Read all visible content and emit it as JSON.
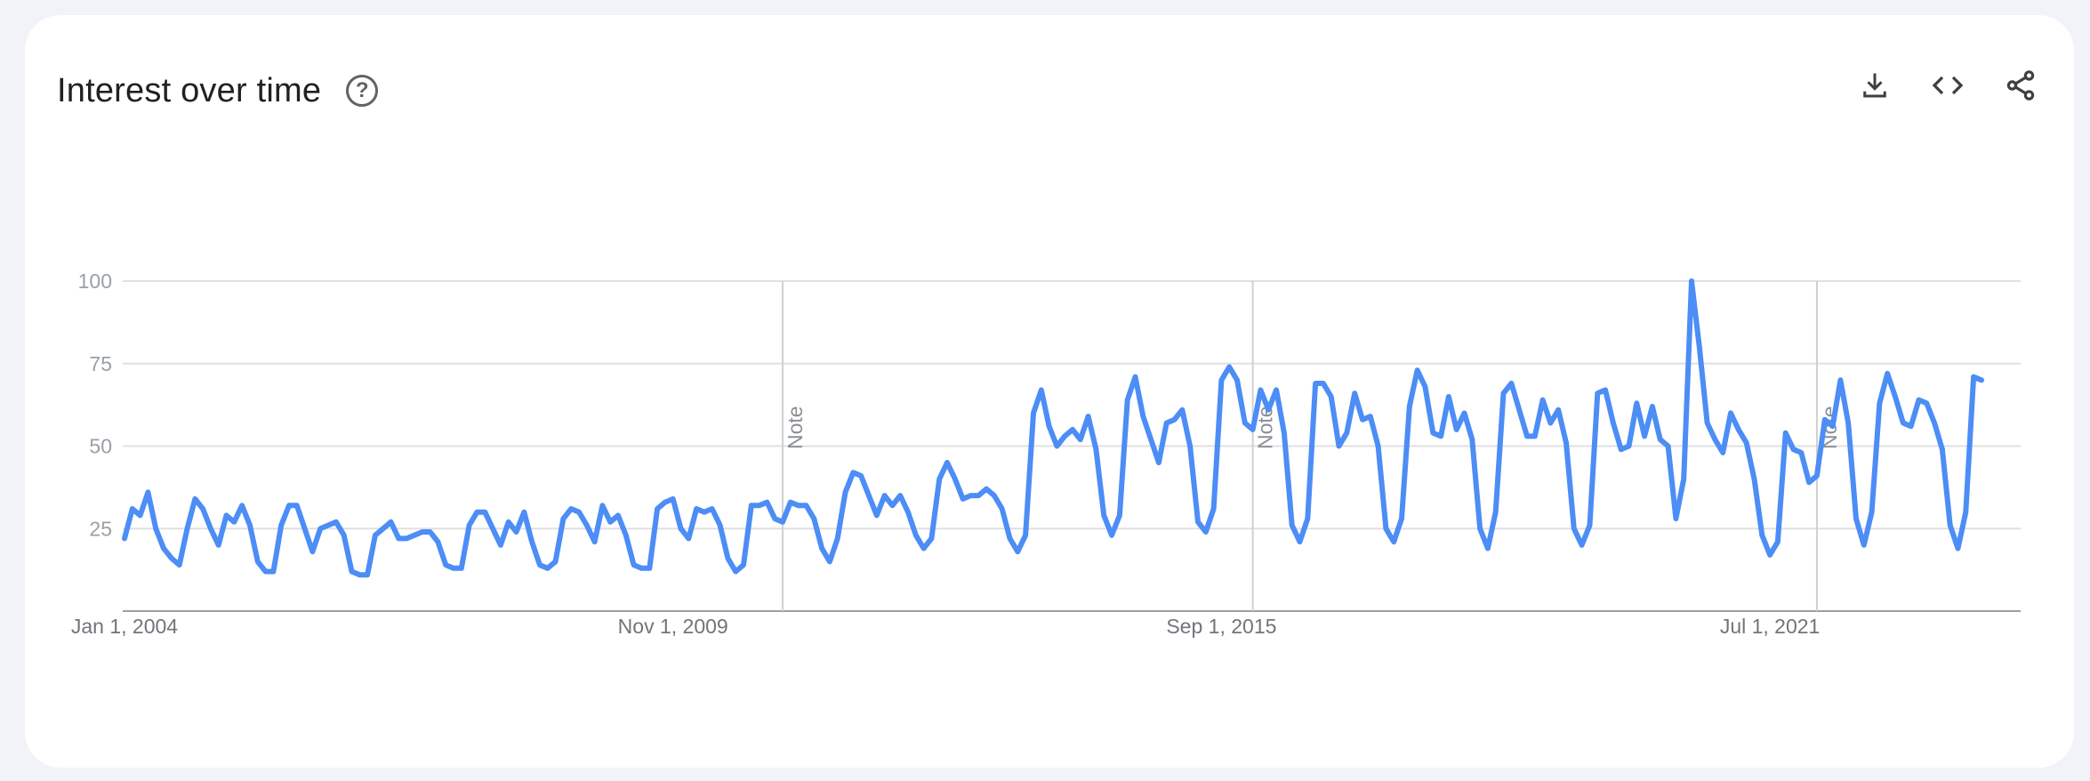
{
  "header": {
    "title": "Interest over time",
    "help_icon": "help-circle-icon"
  },
  "actions": {
    "download_icon": "download-icon",
    "embed_icon": "code-icon",
    "share_icon": "share-icon"
  },
  "colors": {
    "line": "#4c8df6",
    "grid": "#e0e0e0",
    "axis": "#9e9e9e",
    "background": "#f1f3f8"
  },
  "chart_data": {
    "type": "line",
    "title": "",
    "xlabel": "",
    "ylabel": "",
    "ylim": [
      0,
      100
    ],
    "yticks": [
      25,
      50,
      75,
      100
    ],
    "xlim": [
      "2004-01",
      "2024-03"
    ],
    "x_tick_labels": [
      {
        "date": "2004-01",
        "label": "Jan 1, 2004"
      },
      {
        "date": "2009-11",
        "label": "Nov 1, 2009"
      },
      {
        "date": "2015-09",
        "label": "Sep 1, 2015"
      },
      {
        "date": "2021-07",
        "label": "Jul 1, 2021"
      }
    ],
    "notes": [
      {
        "date": "2011-01",
        "label": "Note"
      },
      {
        "date": "2016-01",
        "label": "Note"
      },
      {
        "date": "2022-01",
        "label": "Note"
      }
    ],
    "series": [
      {
        "start": "2004-01",
        "frequency": "monthly",
        "values": [
          22,
          31,
          29,
          36,
          25,
          19,
          16,
          14,
          25,
          34,
          31,
          25,
          20,
          29,
          27,
          32,
          26,
          15,
          12,
          12,
          26,
          32,
          32,
          25,
          18,
          25,
          26,
          27,
          23,
          12,
          11,
          11,
          23,
          25,
          27,
          22,
          22,
          23,
          24,
          24,
          21,
          14,
          13,
          13,
          26,
          30,
          30,
          25,
          20,
          27,
          24,
          30,
          21,
          14,
          13,
          15,
          28,
          31,
          30,
          26,
          21,
          32,
          27,
          29,
          23,
          14,
          13,
          13,
          31,
          33,
          34,
          25,
          22,
          31,
          30,
          31,
          26,
          16,
          12,
          14,
          32,
          32,
          33,
          28,
          27,
          33,
          32,
          32,
          28,
          19,
          15,
          22,
          36,
          42,
          41,
          35,
          29,
          35,
          32,
          35,
          30,
          23,
          19,
          22,
          40,
          45,
          40,
          34,
          35,
          35,
          37,
          35,
          31,
          22,
          18,
          23,
          60,
          67,
          56,
          50,
          53,
          55,
          52,
          59,
          49,
          29,
          23,
          29,
          64,
          71,
          59,
          52,
          45,
          57,
          58,
          61,
          50,
          27,
          24,
          31,
          70,
          74,
          70,
          57,
          55,
          67,
          61,
          67,
          54,
          26,
          21,
          28,
          69,
          69,
          65,
          50,
          54,
          66,
          58,
          59,
          50,
          25,
          21,
          28,
          62,
          73,
          68,
          54,
          53,
          65,
          55,
          60,
          52,
          25,
          19,
          30,
          66,
          69,
          61,
          53,
          53,
          64,
          57,
          61,
          51,
          25,
          20,
          26,
          66,
          67,
          57,
          49,
          50,
          63,
          53,
          62,
          52,
          50,
          28,
          40,
          100,
          80,
          57,
          52,
          48,
          60,
          55,
          51,
          40,
          23,
          17,
          21,
          54,
          49,
          48,
          39,
          41,
          58,
          56,
          70,
          57,
          28,
          20,
          30,
          63,
          72,
          65,
          57,
          56,
          64,
          63,
          57,
          49,
          26,
          19,
          30,
          71,
          70
        ]
      }
    ]
  }
}
